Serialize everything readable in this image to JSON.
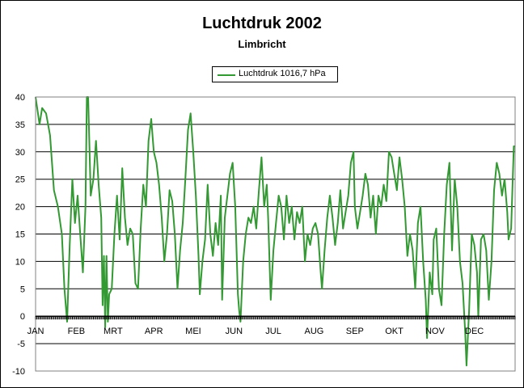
{
  "chart_data": {
    "type": "line",
    "title": "Luchtdruk 2002",
    "subtitle": "Limbricht",
    "xlabel": "",
    "ylabel": "",
    "ylim": [
      -10,
      40
    ],
    "yticks": [
      40,
      35,
      30,
      25,
      20,
      15,
      10,
      5,
      0,
      -5,
      -10
    ],
    "xlim": [
      0,
      365
    ],
    "x_ticks": [
      {
        "label": "JAN",
        "day": 0
      },
      {
        "label": "FEB",
        "day": 31
      },
      {
        "label": "MRT",
        "day": 59
      },
      {
        "label": "APR",
        "day": 90
      },
      {
        "label": "MEI",
        "day": 120
      },
      {
        "label": "JUN",
        "day": 151
      },
      {
        "label": "JUL",
        "day": 181
      },
      {
        "label": "AUG",
        "day": 212
      },
      {
        "label": "SEP",
        "day": 243
      },
      {
        "label": "OKT",
        "day": 273
      },
      {
        "label": "NOV",
        "day": 304
      },
      {
        "label": "DEC",
        "day": 334
      }
    ],
    "grid": "horizontal",
    "legend_position": "top-center",
    "series": [
      {
        "name": "Luchtdruk 1016,7 hPa",
        "color": "#339933",
        "points": [
          [
            0,
            40
          ],
          [
            3,
            35
          ],
          [
            5,
            38
          ],
          [
            8,
            37
          ],
          [
            11,
            33
          ],
          [
            14,
            23
          ],
          [
            17,
            20
          ],
          [
            20,
            15
          ],
          [
            22,
            5
          ],
          [
            24,
            -1
          ],
          [
            26,
            13
          ],
          [
            28,
            25
          ],
          [
            30,
            17
          ],
          [
            32,
            22
          ],
          [
            34,
            15
          ],
          [
            36,
            8
          ],
          [
            38,
            20
          ],
          [
            39,
            40
          ],
          [
            40,
            40
          ],
          [
            42,
            22
          ],
          [
            44,
            25
          ],
          [
            46,
            32
          ],
          [
            48,
            24
          ],
          [
            50,
            18
          ],
          [
            51,
            2
          ],
          [
            52,
            11
          ],
          [
            53,
            -2
          ],
          [
            54,
            11
          ],
          [
            55,
            -1
          ],
          [
            56,
            4
          ],
          [
            58,
            5
          ],
          [
            60,
            15
          ],
          [
            62,
            22
          ],
          [
            64,
            14
          ],
          [
            66,
            27
          ],
          [
            68,
            18
          ],
          [
            70,
            13
          ],
          [
            72,
            16
          ],
          [
            74,
            15
          ],
          [
            76,
            6
          ],
          [
            78,
            5
          ],
          [
            80,
            16
          ],
          [
            82,
            24
          ],
          [
            84,
            20
          ],
          [
            86,
            32
          ],
          [
            88,
            36
          ],
          [
            90,
            30
          ],
          [
            92,
            28
          ],
          [
            94,
            24
          ],
          [
            96,
            18
          ],
          [
            98,
            10
          ],
          [
            100,
            15
          ],
          [
            102,
            23
          ],
          [
            104,
            21
          ],
          [
            106,
            15
          ],
          [
            108,
            5
          ],
          [
            110,
            12
          ],
          [
            112,
            17
          ],
          [
            114,
            25
          ],
          [
            116,
            34
          ],
          [
            118,
            37
          ],
          [
            120,
            30
          ],
          [
            122,
            22
          ],
          [
            124,
            11
          ],
          [
            125,
            4
          ],
          [
            127,
            10
          ],
          [
            129,
            14
          ],
          [
            131,
            24
          ],
          [
            133,
            15
          ],
          [
            135,
            11
          ],
          [
            137,
            17
          ],
          [
            139,
            13
          ],
          [
            141,
            22
          ],
          [
            142,
            3
          ],
          [
            144,
            18
          ],
          [
            146,
            22
          ],
          [
            148,
            26
          ],
          [
            150,
            28
          ],
          [
            152,
            20
          ],
          [
            154,
            4
          ],
          [
            155,
            1
          ],
          [
            156,
            -1
          ],
          [
            158,
            10
          ],
          [
            160,
            15
          ],
          [
            162,
            18
          ],
          [
            164,
            17
          ],
          [
            166,
            20
          ],
          [
            168,
            16
          ],
          [
            170,
            23
          ],
          [
            172,
            29
          ],
          [
            174,
            20
          ],
          [
            176,
            24
          ],
          [
            177,
            18
          ],
          [
            179,
            3
          ],
          [
            181,
            12
          ],
          [
            183,
            17
          ],
          [
            185,
            22
          ],
          [
            187,
            20
          ],
          [
            189,
            14
          ],
          [
            191,
            22
          ],
          [
            193,
            17
          ],
          [
            195,
            20
          ],
          [
            197,
            14
          ],
          [
            199,
            19
          ],
          [
            201,
            17
          ],
          [
            203,
            20
          ],
          [
            205,
            10
          ],
          [
            207,
            15
          ],
          [
            209,
            13
          ],
          [
            211,
            16
          ],
          [
            213,
            17
          ],
          [
            215,
            15
          ],
          [
            217,
            8
          ],
          [
            218,
            5
          ],
          [
            220,
            12
          ],
          [
            222,
            18
          ],
          [
            224,
            22
          ],
          [
            226,
            18
          ],
          [
            228,
            13
          ],
          [
            230,
            17
          ],
          [
            232,
            23
          ],
          [
            234,
            16
          ],
          [
            236,
            19
          ],
          [
            238,
            22
          ],
          [
            240,
            28
          ],
          [
            242,
            30
          ],
          [
            243,
            20
          ],
          [
            245,
            16
          ],
          [
            247,
            19
          ],
          [
            249,
            22
          ],
          [
            251,
            26
          ],
          [
            253,
            24
          ],
          [
            255,
            18
          ],
          [
            257,
            22
          ],
          [
            259,
            15
          ],
          [
            261,
            22
          ],
          [
            263,
            20
          ],
          [
            265,
            24
          ],
          [
            267,
            21
          ],
          [
            269,
            30
          ],
          [
            271,
            29
          ],
          [
            273,
            26
          ],
          [
            275,
            23
          ],
          [
            277,
            29
          ],
          [
            279,
            25
          ],
          [
            281,
            20
          ],
          [
            283,
            11
          ],
          [
            285,
            15
          ],
          [
            287,
            12
          ],
          [
            289,
            5
          ],
          [
            291,
            17
          ],
          [
            293,
            20
          ],
          [
            295,
            10
          ],
          [
            297,
            3
          ],
          [
            298,
            -4
          ],
          [
            300,
            8
          ],
          [
            302,
            4
          ],
          [
            303,
            14
          ],
          [
            305,
            16
          ],
          [
            307,
            5
          ],
          [
            309,
            2
          ],
          [
            311,
            15
          ],
          [
            313,
            24
          ],
          [
            315,
            28
          ],
          [
            317,
            12
          ],
          [
            319,
            25
          ],
          [
            321,
            20
          ],
          [
            323,
            10
          ],
          [
            325,
            6
          ],
          [
            327,
            -3
          ],
          [
            328,
            -9
          ],
          [
            330,
            1
          ],
          [
            332,
            15
          ],
          [
            334,
            13
          ],
          [
            336,
            8
          ],
          [
            337,
            0
          ],
          [
            339,
            14
          ],
          [
            341,
            15
          ],
          [
            343,
            12
          ],
          [
            345,
            3
          ],
          [
            347,
            10
          ],
          [
            349,
            23
          ],
          [
            351,
            28
          ],
          [
            353,
            26
          ],
          [
            355,
            22
          ],
          [
            357,
            25
          ],
          [
            359,
            19
          ],
          [
            360,
            14
          ],
          [
            362,
            16
          ],
          [
            364,
            31
          ],
          [
            365,
            31
          ]
        ]
      }
    ]
  }
}
